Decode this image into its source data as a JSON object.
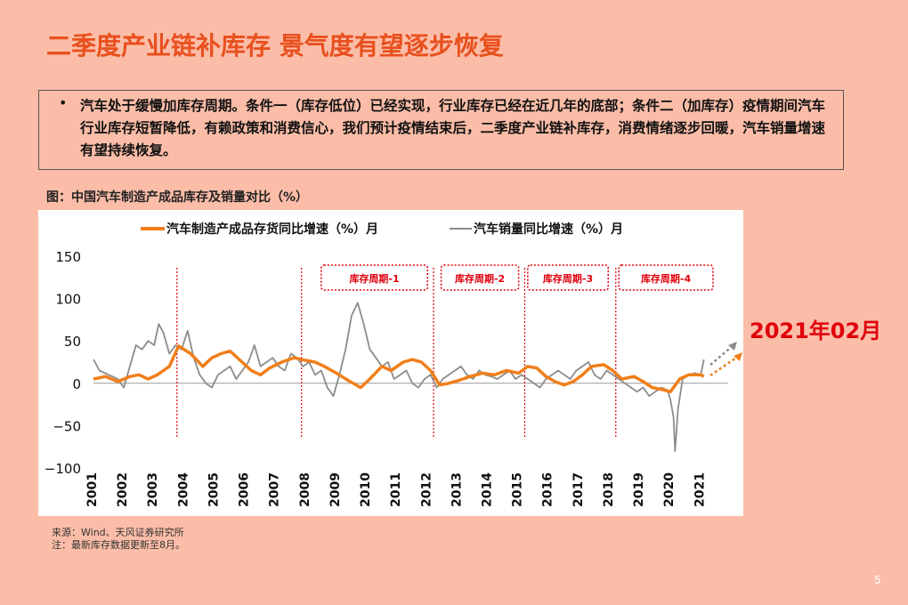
{
  "title": "二季度产业链补库存 景气度有望逐步恢复",
  "bullet": {
    "marker": "•",
    "text": "汽车处于缓慢加库存周期。条件一（库存低位）已经实现，行业库存已经在近几年的底部；条件二（加库存）疫情期间汽车行业库存短暂降低，有赖政策和消费信心，我们预计疫情结束后，二季度产业链补库存，消费情绪逐步回暖，汽车销量增速有望持续恢复。"
  },
  "figure_caption": "图：中国汽车制造产成品库存及销量对比（%）",
  "annotation_date": "2021年02月",
  "source_lines": [
    "来源：Wind、天风证券研究所",
    "注：最新库存数据更新至8月。"
  ],
  "page_number": "5",
  "colors": {
    "inventory": "#F07F1A",
    "sales": "#8C8C8C",
    "cycle_border": "#E0000C",
    "title": "#E8501E"
  },
  "chart_data": {
    "type": "line",
    "ylim": [
      -100,
      150
    ],
    "yticks": [
      150,
      100,
      50,
      0,
      -50,
      -100
    ],
    "yticklabels": [
      "150",
      "100",
      "50",
      "0",
      "−50",
      "−100"
    ],
    "xlim": [
      2001,
      2021.9
    ],
    "xticks": [
      "2001",
      "2002",
      "2003",
      "2004",
      "2005",
      "2006",
      "2007",
      "2008",
      "2009",
      "2010",
      "2011",
      "2012",
      "2013",
      "2014",
      "2015",
      "2016",
      "2017",
      "2018",
      "2019",
      "2020",
      "2021"
    ],
    "legend_position": "top",
    "cycle_boxes": [
      {
        "label": "库存周期-1",
        "x0": 2008.5,
        "x1": 2012.0
      },
      {
        "label": "库存周期-2",
        "x0": 2012.45,
        "x1": 2015.0
      },
      {
        "label": "库存周期-3",
        "x0": 2015.3,
        "x1": 2017.95
      },
      {
        "label": "库存周期-4",
        "x0": 2018.3,
        "x1": 2021.4
      }
    ],
    "dividers": [
      2003.75,
      2007.85,
      2012.2,
      2015.2,
      2018.2
    ],
    "series": [
      {
        "name": "汽车制造产成品存货同比增速（%）月",
        "color": "#F07F1A",
        "x": [
          2001,
          2001.4,
          2001.8,
          2002.2,
          2002.5,
          2002.8,
          2003.1,
          2003.5,
          2003.8,
          2004.2,
          2004.6,
          2004.9,
          2005.2,
          2005.5,
          2005.8,
          2006.2,
          2006.5,
          2006.8,
          2007.2,
          2007.6,
          2008,
          2008.3,
          2008.6,
          2009,
          2009.4,
          2009.8,
          2010.1,
          2010.5,
          2010.8,
          2011.2,
          2011.5,
          2011.8,
          2012.1,
          2012.4,
          2012.7,
          2013,
          2013.4,
          2013.8,
          2014.2,
          2014.6,
          2015,
          2015.3,
          2015.6,
          2015.9,
          2016.2,
          2016.5,
          2016.8,
          2017.1,
          2017.4,
          2017.8,
          2018.1,
          2018.4,
          2018.8,
          2019.1,
          2019.4,
          2019.8,
          2020,
          2020.3,
          2020.6,
          2021,
          2021.1
        ],
        "values": [
          5,
          8,
          2,
          8,
          10,
          5,
          10,
          20,
          44,
          35,
          20,
          30,
          35,
          38,
          28,
          15,
          10,
          18,
          25,
          30,
          27,
          25,
          20,
          12,
          3,
          -5,
          5,
          20,
          15,
          25,
          28,
          25,
          15,
          -2,
          0,
          3,
          8,
          12,
          10,
          15,
          12,
          20,
          18,
          8,
          2,
          -2,
          2,
          10,
          20,
          22,
          15,
          5,
          8,
          2,
          -5,
          -8,
          -10,
          5,
          10,
          10,
          8
        ]
      },
      {
        "name": "汽车销量同比增速（%）月",
        "color": "#8C8C8C",
        "x": [
          2001,
          2001.2,
          2001.5,
          2001.8,
          2002,
          2002.2,
          2002.4,
          2002.6,
          2002.8,
          2003,
          2003.15,
          2003.3,
          2003.5,
          2003.7,
          2003.9,
          2004.1,
          2004.3,
          2004.5,
          2004.7,
          2004.9,
          2005.1,
          2005.3,
          2005.5,
          2005.7,
          2005.9,
          2006.1,
          2006.3,
          2006.5,
          2006.7,
          2006.9,
          2007.1,
          2007.3,
          2007.5,
          2007.7,
          2007.9,
          2008.1,
          2008.3,
          2008.5,
          2008.7,
          2008.9,
          2009.1,
          2009.3,
          2009.5,
          2009.7,
          2009.9,
          2010.1,
          2010.3,
          2010.5,
          2010.7,
          2010.9,
          2011.1,
          2011.3,
          2011.5,
          2011.7,
          2011.9,
          2012.1,
          2012.3,
          2012.5,
          2012.7,
          2012.9,
          2013.1,
          2013.3,
          2013.5,
          2013.7,
          2013.9,
          2014.1,
          2014.3,
          2014.5,
          2014.7,
          2014.9,
          2015.1,
          2015.3,
          2015.5,
          2015.7,
          2015.9,
          2016.1,
          2016.3,
          2016.5,
          2016.7,
          2016.9,
          2017.1,
          2017.3,
          2017.5,
          2017.7,
          2017.9,
          2018.1,
          2018.3,
          2018.5,
          2018.7,
          2018.9,
          2019.1,
          2019.3,
          2019.5,
          2019.7,
          2019.9,
          2020.0,
          2020.1,
          2020.15,
          2020.25,
          2020.4,
          2020.6,
          2020.8,
          2021.0,
          2021.1
        ],
        "values": [
          28,
          15,
          10,
          5,
          -5,
          20,
          45,
          40,
          50,
          45,
          70,
          60,
          35,
          45,
          40,
          62,
          30,
          10,
          0,
          -5,
          10,
          15,
          20,
          5,
          15,
          25,
          45,
          20,
          25,
          30,
          20,
          15,
          35,
          30,
          20,
          25,
          10,
          15,
          -5,
          -15,
          10,
          40,
          80,
          95,
          70,
          40,
          30,
          20,
          25,
          5,
          10,
          15,
          0,
          -5,
          5,
          10,
          -5,
          5,
          10,
          15,
          20,
          10,
          5,
          15,
          10,
          8,
          5,
          10,
          15,
          5,
          10,
          5,
          0,
          -5,
          5,
          10,
          15,
          10,
          5,
          15,
          20,
          25,
          10,
          5,
          15,
          10,
          5,
          0,
          -5,
          -10,
          -5,
          -15,
          -10,
          -5,
          -8,
          -20,
          -40,
          -80,
          -30,
          5,
          10,
          12,
          10,
          28
        ]
      }
    ]
  }
}
